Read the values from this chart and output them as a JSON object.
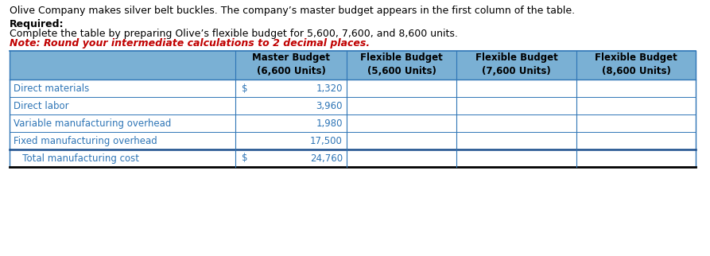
{
  "title_line1": "Olive Company makes silver belt buckles. The company’s master budget appears in the first column of the table.",
  "required_label": "Required:",
  "instruction_line": "Complete the table by preparing Olive’s flexible budget for 5,600, 7,600, and 8,600 units.",
  "note_line": "Note: Round your intermediate calculations to 2 decimal places.",
  "col_headers": [
    "Master Budget\n(6,600 Units)",
    "Flexible Budget\n(5,600 Units)",
    "Flexible Budget\n(7,600 Units)",
    "Flexible Budget\n(8,600 Units)"
  ],
  "row_labels": [
    "Direct materials",
    "Direct labor",
    "Variable manufacturing overhead",
    "Fixed manufacturing overhead",
    "   Total manufacturing cost"
  ],
  "col1_dollar_signs": [
    "$",
    "",
    "",
    "",
    "$"
  ],
  "col1_values": [
    "1,320",
    "3,960",
    "1,980",
    "17,500",
    "24,760"
  ],
  "header_bg": "#7ab0d4",
  "border_color": "#2e75b6",
  "header_text_color": "#000000",
  "row_text_color": "#2e75b6",
  "title_color": "#000000",
  "required_color": "#000000",
  "instruction_color": "#000000",
  "note_color": "#c00000",
  "font_size": 8.5,
  "header_font_size": 8.5
}
